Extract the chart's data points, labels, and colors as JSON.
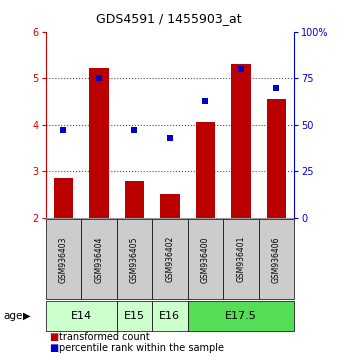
{
  "title": "GDS4591 / 1455903_at",
  "samples": [
    "GSM936403",
    "GSM936404",
    "GSM936405",
    "GSM936402",
    "GSM936400",
    "GSM936401",
    "GSM936406"
  ],
  "red_values": [
    2.85,
    5.22,
    2.8,
    2.52,
    4.05,
    5.3,
    4.55
  ],
  "blue_values": [
    47,
    75,
    47,
    43,
    63,
    80,
    70
  ],
  "ylim_left": [
    2,
    6
  ],
  "ylim_right": [
    0,
    100
  ],
  "yticks_left": [
    2,
    3,
    4,
    5,
    6
  ],
  "yticks_right": [
    0,
    25,
    50,
    75,
    100
  ],
  "yticklabels_right": [
    "0",
    "25",
    "50",
    "75",
    "100%"
  ],
  "bar_color": "#bb0000",
  "dot_color": "#0000cc",
  "bar_bottom": 2,
  "age_groups": [
    {
      "label": "E14",
      "start": 0,
      "end": 1,
      "color": "#ccffcc"
    },
    {
      "label": "E15",
      "start": 2,
      "end": 2,
      "color": "#ccffcc"
    },
    {
      "label": "E16",
      "start": 3,
      "end": 3,
      "color": "#ccffcc"
    },
    {
      "label": "E17.5",
      "start": 4,
      "end": 6,
      "color": "#55dd55"
    }
  ],
  "sample_box_color": "#cccccc",
  "legend_items": [
    {
      "color": "#bb0000",
      "label": "transformed count"
    },
    {
      "color": "#0000cc",
      "label": "percentile rank within the sample"
    }
  ],
  "left_axis_color": "#cc0000",
  "right_axis_color": "#0000cc",
  "bar_width": 0.55,
  "dot_size": 22,
  "grid_ticks": [
    3,
    4,
    5
  ],
  "title_fontsize": 9,
  "tick_fontsize": 7,
  "sample_fontsize": 5.5,
  "age_fontsize": 8,
  "legend_fontsize": 7
}
